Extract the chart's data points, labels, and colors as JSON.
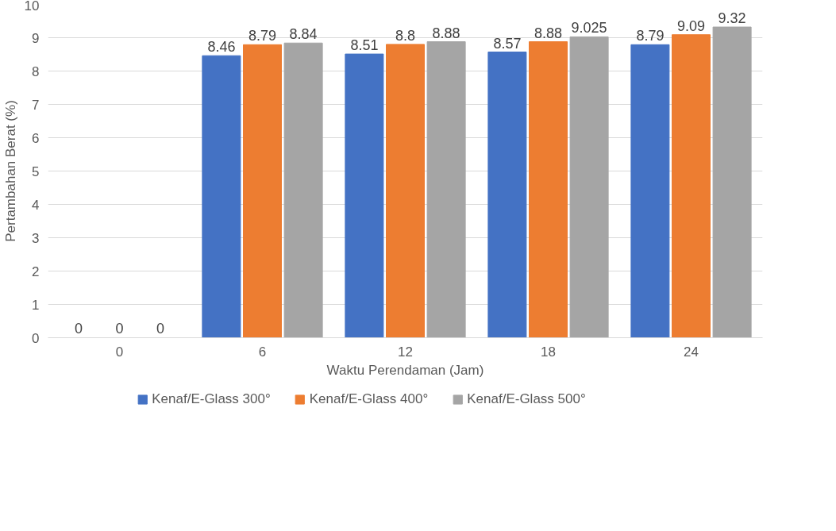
{
  "chart_data": {
    "type": "bar",
    "xlabel": "Waktu Perendaman (Jam)",
    "ylabel": "Pertambahan Berat (%)",
    "categories": [
      "0",
      "6",
      "12",
      "18",
      "24"
    ],
    "series": [
      {
        "name": "Kenaf/E-Glass 300°",
        "color": "#4472c4",
        "values": [
          0,
          8.46,
          8.51,
          8.57,
          8.79
        ]
      },
      {
        "name": "Kenaf/E-Glass 400°",
        "color": "#ed7d31",
        "values": [
          0,
          8.79,
          8.8,
          8.88,
          9.09
        ]
      },
      {
        "name": "Kenaf/E-Glass 500°",
        "color": "#a5a5a5",
        "values": [
          0,
          8.84,
          8.88,
          9.025,
          9.32
        ]
      }
    ],
    "ylim": [
      0,
      10
    ],
    "yticks": [
      0,
      1,
      2,
      3,
      4,
      5,
      6,
      7,
      8,
      9,
      10
    ],
    "grid": "y",
    "legend": "bottom",
    "data_labels": true
  }
}
